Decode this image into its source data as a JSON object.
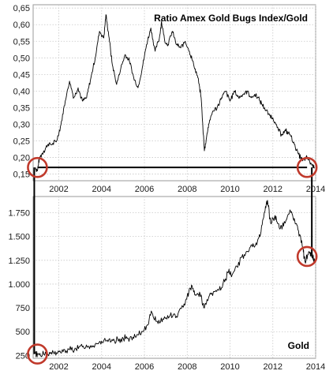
{
  "colors": {
    "line": "#000000",
    "marker": "#c0392b",
    "grid": "#c8c8c8",
    "frame": "#9a9a9a"
  },
  "chart_data": [
    {
      "type": "line",
      "title": "Ratio Amex Gold Bugs Index/Gold",
      "xlabel": "",
      "ylabel": "",
      "xlim": [
        2000.8,
        2014.0
      ],
      "ylim": [
        0.13,
        0.66
      ],
      "x_ticks": [
        2002,
        2004,
        2006,
        2008,
        2010,
        2012,
        2014
      ],
      "x_tick_labels": [
        "2002",
        "2004",
        "2006",
        "2008",
        "2010",
        "2012",
        "2014"
      ],
      "y_ticks": [
        0.15,
        0.2,
        0.25,
        0.3,
        0.35,
        0.4,
        0.45,
        0.5,
        0.55,
        0.6,
        0.65
      ],
      "y_tick_labels": [
        "0,15",
        "0,20",
        "0,25",
        "0,30",
        "0,35",
        "0,40",
        "0,45",
        "0,50",
        "0,55",
        "0,60",
        "0,65"
      ],
      "grid": true,
      "series": [
        {
          "values_xy": [
            [
              2000.9,
              0.17
            ],
            [
              2001.0,
              0.16
            ],
            [
              2001.1,
              0.2
            ],
            [
              2001.3,
              0.22
            ],
            [
              2001.5,
              0.24
            ],
            [
              2001.7,
              0.24
            ],
            [
              2001.9,
              0.25
            ],
            [
              2002.1,
              0.3
            ],
            [
              2002.3,
              0.37
            ],
            [
              2002.5,
              0.43
            ],
            [
              2002.7,
              0.38
            ],
            [
              2002.9,
              0.41
            ],
            [
              2003.1,
              0.37
            ],
            [
              2003.3,
              0.38
            ],
            [
              2003.5,
              0.44
            ],
            [
              2003.7,
              0.5
            ],
            [
              2003.9,
              0.58
            ],
            [
              2004.1,
              0.56
            ],
            [
              2004.2,
              0.63
            ],
            [
              2004.35,
              0.56
            ],
            [
              2004.5,
              0.48
            ],
            [
              2004.7,
              0.42
            ],
            [
              2004.9,
              0.47
            ],
            [
              2005.1,
              0.51
            ],
            [
              2005.3,
              0.49
            ],
            [
              2005.5,
              0.44
            ],
            [
              2005.7,
              0.41
            ],
            [
              2005.9,
              0.47
            ],
            [
              2006.1,
              0.54
            ],
            [
              2006.3,
              0.59
            ],
            [
              2006.5,
              0.52
            ],
            [
              2006.7,
              0.56
            ],
            [
              2006.8,
              0.61
            ],
            [
              2006.95,
              0.55
            ],
            [
              2007.1,
              0.54
            ],
            [
              2007.3,
              0.58
            ],
            [
              2007.5,
              0.54
            ],
            [
              2007.7,
              0.53
            ],
            [
              2007.9,
              0.55
            ],
            [
              2008.1,
              0.52
            ],
            [
              2008.3,
              0.48
            ],
            [
              2008.5,
              0.44
            ],
            [
              2008.65,
              0.38
            ],
            [
              2008.8,
              0.22
            ],
            [
              2008.9,
              0.26
            ],
            [
              2009.0,
              0.3
            ],
            [
              2009.2,
              0.34
            ],
            [
              2009.4,
              0.35
            ],
            [
              2009.6,
              0.38
            ],
            [
              2009.8,
              0.4
            ],
            [
              2010.0,
              0.37
            ],
            [
              2010.2,
              0.4
            ],
            [
              2010.4,
              0.38
            ],
            [
              2010.6,
              0.39
            ],
            [
              2010.8,
              0.4
            ],
            [
              2011.0,
              0.38
            ],
            [
              2011.2,
              0.39
            ],
            [
              2011.4,
              0.37
            ],
            [
              2011.6,
              0.35
            ],
            [
              2011.8,
              0.33
            ],
            [
              2012.0,
              0.32
            ],
            [
              2012.2,
              0.29
            ],
            [
              2012.4,
              0.27
            ],
            [
              2012.6,
              0.28
            ],
            [
              2012.8,
              0.27
            ],
            [
              2013.0,
              0.24
            ],
            [
              2013.2,
              0.21
            ],
            [
              2013.4,
              0.19
            ],
            [
              2013.6,
              0.2
            ],
            [
              2013.8,
              0.18
            ],
            [
              2013.95,
              0.17
            ]
          ]
        }
      ],
      "annotations": [
        {
          "type": "circle",
          "x": 2001.0,
          "y": 0.17
        },
        {
          "type": "circle",
          "x": 2013.6,
          "y": 0.17
        },
        {
          "type": "hline",
          "y": 0.17,
          "x_from": 2001.0,
          "x_to": 2013.6
        }
      ]
    },
    {
      "type": "line",
      "title": "Gold",
      "xlabel": "",
      "ylabel": "",
      "xlim": [
        2000.8,
        2014.0
      ],
      "ylim": [
        220,
        1920
      ],
      "x_ticks": [
        2002,
        2004,
        2006,
        2008,
        2010,
        2012,
        2014
      ],
      "x_tick_labels": [
        "2002",
        "2004",
        "2006",
        "2008",
        "2010",
        "2012",
        "2014"
      ],
      "y_ticks": [
        250,
        500,
        750,
        1000,
        1250,
        1500,
        1750
      ],
      "y_tick_labels": [
        "250",
        "500",
        "750",
        "1.000",
        "1.250",
        "1.500",
        "1.750"
      ],
      "grid": true,
      "series": [
        {
          "values_xy": [
            [
              2000.9,
              270
            ],
            [
              2001.0,
              265
            ],
            [
              2001.3,
              260
            ],
            [
              2001.6,
              270
            ],
            [
              2001.9,
              280
            ],
            [
              2002.2,
              290
            ],
            [
              2002.5,
              310
            ],
            [
              2002.8,
              320
            ],
            [
              2003.1,
              340
            ],
            [
              2003.4,
              345
            ],
            [
              2003.7,
              370
            ],
            [
              2004.0,
              400
            ],
            [
              2004.3,
              395
            ],
            [
              2004.6,
              405
            ],
            [
              2004.9,
              425
            ],
            [
              2005.2,
              430
            ],
            [
              2005.5,
              430
            ],
            [
              2005.8,
              470
            ],
            [
              2006.1,
              560
            ],
            [
              2006.35,
              700
            ],
            [
              2006.6,
              610
            ],
            [
              2006.9,
              630
            ],
            [
              2007.2,
              670
            ],
            [
              2007.5,
              660
            ],
            [
              2007.8,
              760
            ],
            [
              2008.0,
              880
            ],
            [
              2008.2,
              990
            ],
            [
              2008.4,
              880
            ],
            [
              2008.6,
              900
            ],
            [
              2008.8,
              750
            ],
            [
              2009.0,
              860
            ],
            [
              2009.3,
              920
            ],
            [
              2009.6,
              960
            ],
            [
              2009.9,
              1120
            ],
            [
              2010.1,
              1100
            ],
            [
              2010.4,
              1230
            ],
            [
              2010.7,
              1300
            ],
            [
              2010.95,
              1390
            ],
            [
              2011.2,
              1420
            ],
            [
              2011.4,
              1500
            ],
            [
              2011.6,
              1750
            ],
            [
              2011.75,
              1880
            ],
            [
              2011.9,
              1640
            ],
            [
              2012.1,
              1720
            ],
            [
              2012.3,
              1590
            ],
            [
              2012.5,
              1610
            ],
            [
              2012.8,
              1780
            ],
            [
              2013.0,
              1690
            ],
            [
              2013.2,
              1560
            ],
            [
              2013.4,
              1380
            ],
            [
              2013.5,
              1240
            ],
            [
              2013.7,
              1340
            ],
            [
              2013.85,
              1290
            ],
            [
              2013.95,
              1250
            ]
          ]
        }
      ],
      "annotations": [
        {
          "type": "circle",
          "x": 2001.0,
          "y": 265
        },
        {
          "type": "circle",
          "x": 2013.6,
          "y": 1290
        }
      ]
    }
  ]
}
